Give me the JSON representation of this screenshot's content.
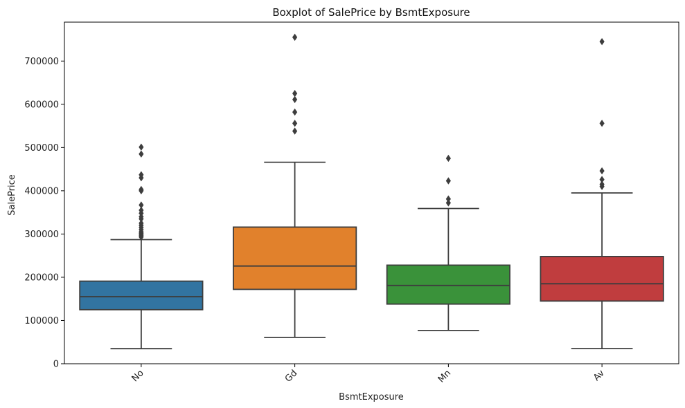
{
  "chart_data": {
    "type": "box",
    "title": "Boxplot of SalePrice by BsmtExposure",
    "xlabel": "BsmtExposure",
    "ylabel": "SalePrice",
    "ylim": [
      0,
      790000
    ],
    "yticks": [
      0,
      100000,
      200000,
      300000,
      400000,
      500000,
      600000,
      700000
    ],
    "ytick_labels": [
      "0",
      "100000",
      "200000",
      "300000",
      "400000",
      "500000",
      "600000",
      "700000"
    ],
    "x_tick_rotation_deg": 45,
    "grid": false,
    "categories": [
      "No",
      "Gd",
      "Mn",
      "Av"
    ],
    "boxes": [
      {
        "category": "No",
        "color": "#3274a1",
        "whisker_low": 34900,
        "q1": 125000,
        "median": 155000,
        "q3": 191000,
        "whisker_high": 287000,
        "outliers": [
          293000,
          296000,
          299000,
          302000,
          305000,
          310000,
          315000,
          320000,
          325000,
          335000,
          340000,
          348000,
          355000,
          367000,
          400000,
          403000,
          430000,
          437000,
          485000,
          501000
        ]
      },
      {
        "category": "Gd",
        "color": "#e1812c",
        "whisker_low": 61000,
        "q1": 172000,
        "median": 226000,
        "q3": 316000,
        "whisker_high": 466000,
        "outliers": [
          538000,
          556000,
          582000,
          611000,
          625000,
          755000
        ]
      },
      {
        "category": "Mn",
        "color": "#3a923a",
        "whisker_low": 77000,
        "q1": 138000,
        "median": 181000,
        "q3": 228000,
        "whisker_high": 359000,
        "outliers": [
          372000,
          381000,
          423000,
          475000
        ]
      },
      {
        "category": "Av",
        "color": "#c03d3e",
        "whisker_low": 35000,
        "q1": 145000,
        "median": 185000,
        "q3": 248000,
        "whisker_high": 395000,
        "outliers": [
          410000,
          415000,
          426000,
          446000,
          556000,
          745000
        ]
      }
    ]
  }
}
